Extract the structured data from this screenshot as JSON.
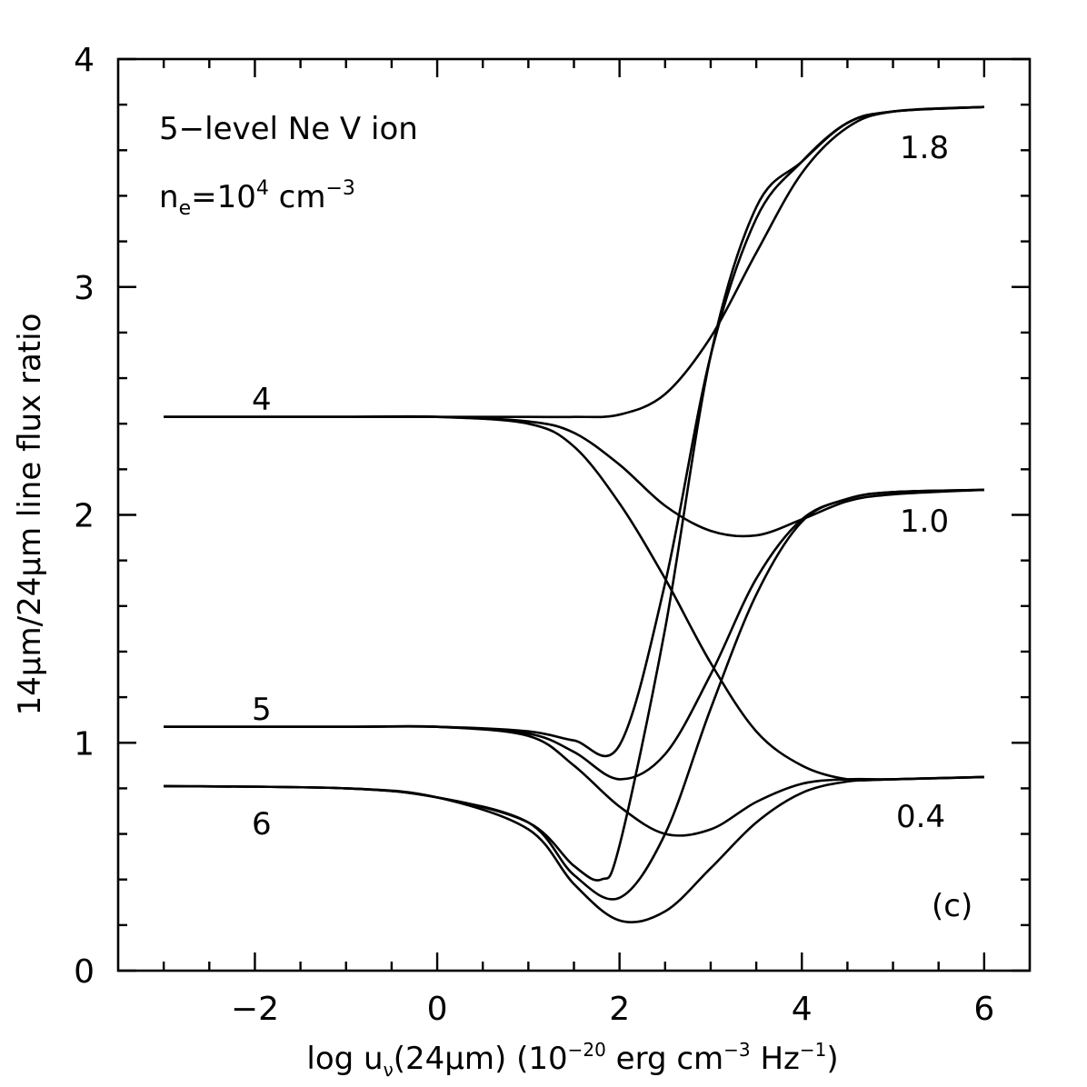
{
  "chart_data": {
    "type": "line",
    "xlabel": "log u_ν(24μm) (10^-20 erg cm^-3 Hz^-1)",
    "ylabel": "14μm/24μm line flux ratio",
    "xlim": [
      -3.5,
      6.5
    ],
    "ylim": [
      0,
      4
    ],
    "x_ticks": [
      -2,
      0,
      2,
      4,
      6
    ],
    "x_tick_labels": [
      "−2",
      "0",
      "2",
      "4",
      "6"
    ],
    "y_ticks": [
      0,
      1,
      2,
      3,
      4
    ],
    "y_tick_labels": [
      "0",
      "1",
      "2",
      "3",
      "4"
    ],
    "annotations": {
      "ion_line1": "5−level Ne V ion",
      "density_prefix": "n",
      "density_sub": "e",
      "density_eq": "=10",
      "density_exp": "4",
      "density_unit": " cm",
      "density_unit_exp": "−3",
      "panel": "(c)",
      "left_labels": [
        "4",
        "5",
        "6"
      ],
      "right_labels": [
        "1.8",
        "1.0",
        "0.4"
      ]
    },
    "xlabel_parts": {
      "a": "log u",
      "a_sub": "ν",
      "b": "(24μm) (10",
      "b_exp": "−20",
      "c": " erg cm",
      "c_exp": "−3",
      "d": " Hz",
      "d_exp": "−1",
      "e": ")"
    },
    "series": [
      {
        "label_left": "4",
        "label_right": "1.8",
        "x": [
          -3,
          -1,
          0,
          1,
          1.5,
          2,
          2.5,
          3,
          3.5,
          4,
          4.5,
          5,
          6
        ],
        "y": [
          2.43,
          2.43,
          2.43,
          2.43,
          2.43,
          2.44,
          2.53,
          2.78,
          3.15,
          3.5,
          3.7,
          3.77,
          3.79
        ]
      },
      {
        "label_left": "4",
        "label_right": "1.0",
        "x": [
          -3,
          -1,
          0,
          1,
          1.5,
          2,
          2.5,
          3,
          3.5,
          4,
          4.5,
          5,
          6
        ],
        "y": [
          2.43,
          2.43,
          2.43,
          2.41,
          2.36,
          2.22,
          2.04,
          1.93,
          1.91,
          1.98,
          2.06,
          2.09,
          2.11
        ]
      },
      {
        "label_left": "4",
        "label_right": "0.4",
        "x": [
          -3,
          -1,
          0,
          1,
          1.5,
          2,
          2.5,
          3,
          3.5,
          4,
          4.5,
          5,
          6
        ],
        "y": [
          2.43,
          2.43,
          2.43,
          2.4,
          2.3,
          2.05,
          1.72,
          1.35,
          1.05,
          0.9,
          0.84,
          0.84,
          0.85
        ]
      },
      {
        "label_left": "5",
        "label_right": "1.8",
        "x": [
          -3,
          -1,
          0,
          1,
          1.5,
          2,
          2.5,
          3,
          3.5,
          4,
          4.5,
          5,
          6
        ],
        "y": [
          1.07,
          1.07,
          1.07,
          1.05,
          1.01,
          0.99,
          1.7,
          2.7,
          3.3,
          3.55,
          3.72,
          3.77,
          3.79
        ]
      },
      {
        "label_left": "5",
        "label_right": "1.0",
        "x": [
          -3,
          -1,
          0,
          1,
          1.5,
          2,
          2.5,
          3,
          3.5,
          4,
          4.5,
          5,
          6
        ],
        "y": [
          1.07,
          1.07,
          1.07,
          1.04,
          0.96,
          0.84,
          0.95,
          1.3,
          1.72,
          1.98,
          2.07,
          2.1,
          2.11
        ]
      },
      {
        "label_left": "5",
        "label_right": "0.4",
        "x": [
          -3,
          -1,
          0,
          1,
          1.5,
          2,
          2.5,
          3,
          3.5,
          4,
          4.5,
          5,
          6
        ],
        "y": [
          1.07,
          1.07,
          1.07,
          1.03,
          0.9,
          0.72,
          0.6,
          0.62,
          0.74,
          0.82,
          0.84,
          0.84,
          0.85
        ]
      },
      {
        "label_left": "6",
        "label_right": "1.8",
        "x": [
          -3,
          -1,
          0,
          1,
          1.5,
          1.8,
          2,
          2.5,
          3,
          3.5,
          4,
          4.5,
          5,
          6
        ],
        "y": [
          0.81,
          0.8,
          0.76,
          0.65,
          0.46,
          0.4,
          0.55,
          1.5,
          2.7,
          3.35,
          3.55,
          3.72,
          3.77,
          3.79
        ]
      },
      {
        "label_left": "6",
        "label_right": "1.0",
        "x": [
          -3,
          -1,
          0,
          1,
          1.5,
          2,
          2.5,
          3,
          3.5,
          4,
          4.5,
          5,
          6
        ],
        "y": [
          0.81,
          0.8,
          0.76,
          0.65,
          0.42,
          0.32,
          0.6,
          1.15,
          1.65,
          1.97,
          2.07,
          2.1,
          2.11
        ]
      },
      {
        "label_left": "6",
        "label_right": "0.4",
        "x": [
          -3,
          -1,
          0,
          1,
          1.5,
          2,
          2.5,
          3,
          3.5,
          4,
          4.5,
          5,
          6
        ],
        "y": [
          0.81,
          0.8,
          0.76,
          0.62,
          0.38,
          0.22,
          0.26,
          0.45,
          0.65,
          0.78,
          0.83,
          0.84,
          0.85
        ]
      }
    ]
  }
}
